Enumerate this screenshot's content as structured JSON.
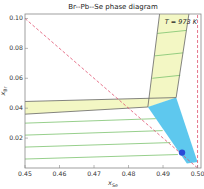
{
  "chart_data": {
    "type": "line",
    "title": "Br--Pb--Se phase diagram",
    "annotation": "T = 973 K",
    "x_label": "xSe",
    "y_label": "xBr",
    "xlim": [
      0.45,
      0.501
    ],
    "ylim": [
      0,
      0.103
    ],
    "xticks": [
      0.45,
      0.46,
      0.47,
      0.48,
      0.49,
      {
        "value": 0.5,
        "label": "0.50"
      }
    ],
    "yticks": [
      0.02,
      0.04,
      0.06,
      0.08,
      {
        "value": 0.1,
        "label": "0.10"
      }
    ],
    "series": [
      {
        "type": "area",
        "color": "#f3f7c4",
        "x": [
          0.489,
          0.4975,
          0.4938,
          0.4856
        ],
        "values": [
          0.103,
          0.103,
          0.0471,
          0.0408
        ]
      },
      {
        "type": "area",
        "color": "#f3f7c4",
        "x": [
          0.45,
          0.4938,
          0.4856,
          0.45
        ],
        "values": [
          0.0445,
          0.0471,
          0.0408,
          0.036
        ]
      },
      {
        "type": "area",
        "color": "#5ec8ee",
        "x": [
          0.4856,
          0.4938,
          0.5,
          0.4969
        ],
        "values": [
          0.0408,
          0.0471,
          0.004,
          0.003
        ]
      },
      {
        "type": "line",
        "color": "#7cc36e",
        "line_style": "solid",
        "x": [
          0.4883,
          0.4967
        ],
        "values": [
          0.09,
          0.092
        ]
      },
      {
        "type": "line",
        "color": "#7cc36e",
        "line_style": "solid",
        "x": [
          0.4876,
          0.4958
        ],
        "values": [
          0.075,
          0.077
        ]
      },
      {
        "type": "line",
        "color": "#7cc36e",
        "line_style": "solid",
        "x": [
          0.4869,
          0.495
        ],
        "values": [
          0.06,
          0.062
        ]
      },
      {
        "type": "line",
        "color": "#7cc36e",
        "line_style": "solid",
        "x": [
          0.45,
          0.4879
        ],
        "values": [
          0.03,
          0.033
        ]
      },
      {
        "type": "line",
        "color": "#7cc36e",
        "line_style": "solid",
        "x": [
          0.45,
          0.4899
        ],
        "values": [
          0.022,
          0.025
        ]
      },
      {
        "type": "line",
        "color": "#7cc36e",
        "line_style": "solid",
        "x": [
          0.45,
          0.4921
        ],
        "values": [
          0.014,
          0.017
        ]
      },
      {
        "type": "line",
        "color": "#7cc36e",
        "line_style": "solid",
        "x": [
          0.45,
          0.4943
        ],
        "values": [
          0.006,
          0.009
        ]
      },
      {
        "type": "line",
        "color": "#666666",
        "line_style": "solid",
        "x": [
          0.489,
          0.4856
        ],
        "values": [
          0.103,
          0.0408
        ]
      },
      {
        "type": "line",
        "color": "#666666",
        "line_style": "solid",
        "x": [
          0.4975,
          0.4938
        ],
        "values": [
          0.103,
          0.0471
        ]
      },
      {
        "type": "line",
        "color": "#666666",
        "line_style": "solid",
        "x": [
          0.45,
          0.4938
        ],
        "values": [
          0.0445,
          0.0471
        ]
      },
      {
        "type": "line",
        "color": "#666666",
        "line_style": "solid",
        "x": [
          0.45,
          0.4856
        ],
        "values": [
          0.036,
          0.0408
        ]
      },
      {
        "type": "line",
        "color": "#e0506e",
        "line_style": "dashed",
        "x": [
          0.45,
          0.5
        ],
        "values": [
          0.1,
          0
        ]
      },
      {
        "type": "line",
        "color": "#e0506e",
        "line_style": "dashed",
        "x": [
          0.5,
          0.5
        ],
        "values": [
          0,
          0.103
        ]
      },
      {
        "type": "scatter",
        "color": "#2a4bd7",
        "marker": "circle",
        "x": [
          0.4955
        ],
        "values": [
          0.0103
        ]
      }
    ]
  }
}
